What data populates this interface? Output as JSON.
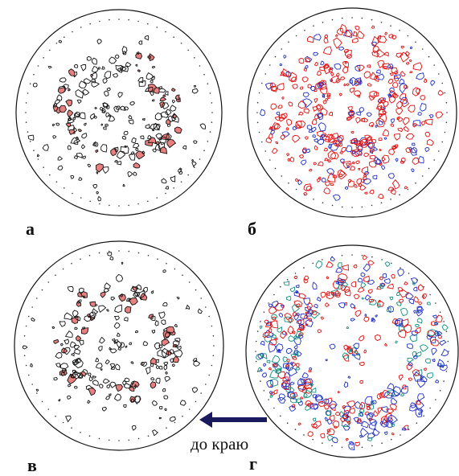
{
  "panels": [
    {
      "label": "а"
    },
    {
      "label": "б"
    },
    {
      "label": "в"
    },
    {
      "label": "г"
    }
  ],
  "annotation": "до краю"
}
